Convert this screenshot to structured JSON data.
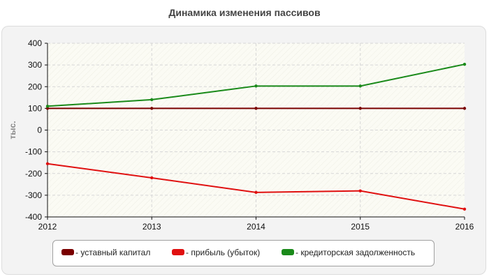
{
  "chart_data": {
    "type": "line",
    "title": "Динамика изменения пассивов",
    "xlabel": "",
    "ylabel": "тыс.",
    "x": [
      "2012",
      "2013",
      "2014",
      "2015",
      "2016"
    ],
    "ylim": [
      -400,
      400
    ],
    "yticks": [
      "400",
      "300",
      "200",
      "100",
      "0",
      "-100",
      "-200",
      "-300",
      "-400"
    ],
    "grid": true,
    "legend_position": "bottom",
    "series": [
      {
        "name": "- уставный капитал",
        "color": "#7a0000",
        "values": [
          100,
          100,
          100,
          100,
          100
        ]
      },
      {
        "name": "- прибыль (убыток)",
        "color": "#e01010",
        "values": [
          -155,
          -220,
          -287,
          -280,
          -364
        ]
      },
      {
        "name": "- кредиторская задолженность",
        "color": "#1a8a1a",
        "values": [
          110,
          140,
          203,
          203,
          303
        ]
      }
    ]
  }
}
